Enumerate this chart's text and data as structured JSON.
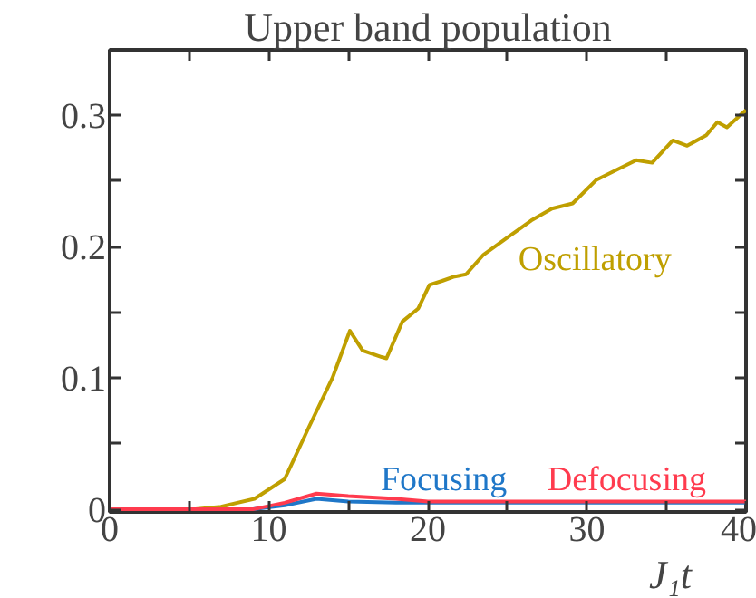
{
  "chart_data": {
    "type": "line",
    "title": "Upper band population",
    "xlabel": "J₁t",
    "xlim": [
      0,
      40
    ],
    "ylim": [
      -0.002,
      0.35
    ],
    "xticks": [
      0,
      {
        "value": 5,
        "label": null
      },
      10,
      {
        "value": 15,
        "label": null
      },
      20,
      {
        "value": 25,
        "label": null
      },
      30,
      {
        "value": 35,
        "label": null
      },
      40
    ],
    "yticks": [
      0,
      {
        "value": 0.05,
        "label": null
      },
      0.1,
      {
        "value": 0.15,
        "label": null
      },
      0.2,
      {
        "value": 0.25,
        "label": null
      },
      0.3
    ],
    "grid": false,
    "series": [
      {
        "name": "Oscillatory",
        "color": "#bf9f00",
        "x": [
          0,
          5.4,
          7,
          9.1,
          11,
          12.5,
          14,
          15.1,
          15.9,
          17.1,
          17.4,
          18.4,
          19.4,
          20.1,
          20.9,
          21.6,
          22.4,
          23.5,
          25.0,
          26.5,
          27.8,
          29.1,
          30.6,
          31.6,
          33.1,
          34.1,
          35.4,
          36.3,
          37.5,
          38.2,
          38.8,
          39.8,
          40
        ],
        "values": [
          0,
          0,
          0.002,
          0.008,
          0.023,
          0.062,
          0.1,
          0.136,
          0.121,
          0.116,
          0.115,
          0.143,
          0.153,
          0.171,
          0.174,
          0.177,
          0.179,
          0.194,
          0.207,
          0.22,
          0.229,
          0.233,
          0.251,
          0.257,
          0.266,
          0.264,
          0.281,
          0.277,
          0.285,
          0.295,
          0.291,
          0.302,
          0.304
        ]
      },
      {
        "name": "Focusing",
        "color": "#1f77c8",
        "x": [
          0,
          9,
          11,
          13,
          15,
          18,
          20,
          25,
          30,
          35,
          40
        ],
        "values": [
          0,
          0,
          0.003,
          0.008,
          0.006,
          0.005,
          0.005,
          0.005,
          0.005,
          0.005,
          0.005
        ]
      },
      {
        "name": "Defocusing",
        "color": "#ff3b4e",
        "x": [
          0,
          9,
          11,
          13,
          15,
          18,
          20,
          25,
          30,
          35,
          40
        ],
        "values": [
          0,
          0,
          0.005,
          0.012,
          0.01,
          0.008,
          0.006,
          0.006,
          0.006,
          0.006,
          0.006
        ]
      }
    ]
  }
}
